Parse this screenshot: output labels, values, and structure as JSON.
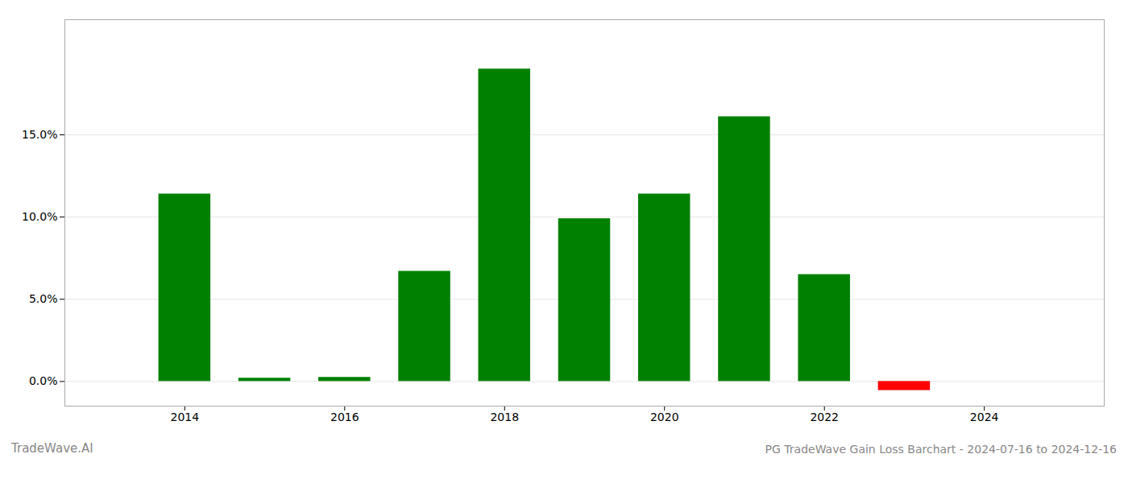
{
  "chart_data": {
    "type": "bar",
    "title": "PG TradeWave Gain Loss Barchart - 2024-07-16 to 2024-12-16",
    "annotations": [
      "TradeWave.AI"
    ],
    "x": [
      2014,
      2015,
      2016,
      2017,
      2018,
      2019,
      2020,
      2021,
      2022,
      2023
    ],
    "values": [
      11.4,
      0.2,
      0.25,
      6.7,
      19.0,
      9.9,
      11.4,
      16.1,
      6.5,
      -0.55
    ],
    "colors": [
      "#008000",
      "#008000",
      "#008000",
      "#008000",
      "#008000",
      "#008000",
      "#008000",
      "#008000",
      "#008000",
      "#ff0000"
    ],
    "xlim": [
      2012.5,
      2025.5
    ],
    "xticks": [
      2014,
      2016,
      2018,
      2020,
      2022,
      2024
    ],
    "ylim": [
      -1.5,
      22.0
    ],
    "yticks": [
      {
        "value": 0.0,
        "label": "0.0%"
      },
      {
        "value": 5.0,
        "label": "5.0%"
      },
      {
        "value": 10.0,
        "label": "10.0%"
      },
      {
        "value": 15.0,
        "label": "15.0%"
      }
    ],
    "grid": true
  }
}
